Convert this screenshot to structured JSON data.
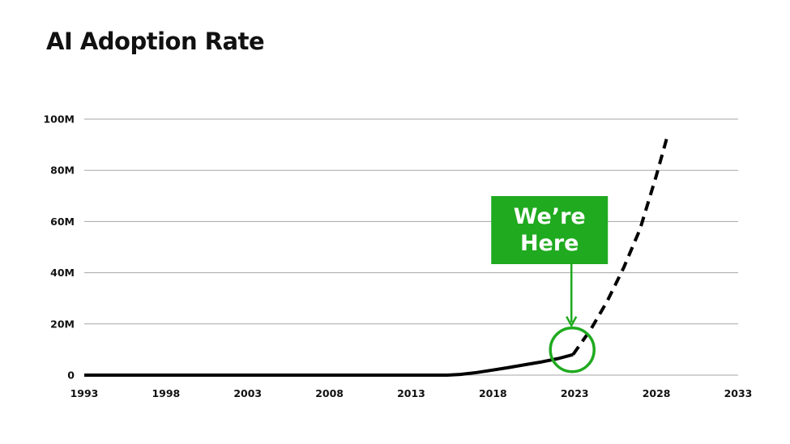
{
  "chart_data": {
    "type": "line",
    "title": "AI Adoption Rate",
    "xlabel": "",
    "ylabel": "",
    "x_ticks": [
      "1993",
      "1998",
      "2003",
      "2008",
      "2013",
      "2018",
      "2023",
      "2028",
      "2033"
    ],
    "y_ticks": [
      "0",
      "20M",
      "40M",
      "60M",
      "80M",
      "100M"
    ],
    "xlim": [
      1993,
      2033
    ],
    "ylim": [
      0,
      100000000
    ],
    "grid": "horizontal",
    "series": [
      {
        "style": "solid",
        "x": [
          1993,
          2015.2,
          2016,
          2017,
          2018,
          2019,
          2020,
          2021,
          2022,
          2022.9
        ],
        "y": [
          0,
          0,
          300000,
          1000000,
          2000000,
          3000000,
          4100000,
          5200000,
          6500000,
          8000000
        ]
      },
      {
        "style": "dashed",
        "x": [
          2022.9,
          2024,
          2025,
          2026,
          2027,
          2028,
          2028.7
        ],
        "y": [
          8000000,
          18000000,
          29000000,
          42000000,
          57000000,
          78000000,
          94000000
        ]
      }
    ],
    "annotation": {
      "text_lines": [
        "We’re",
        "Here"
      ],
      "x": 2022.9,
      "y": 8000000,
      "color": "#1faa1f"
    }
  },
  "colors": {
    "line": "#000000",
    "grid": "#a6a6a6",
    "callout": "#1faa1f"
  }
}
